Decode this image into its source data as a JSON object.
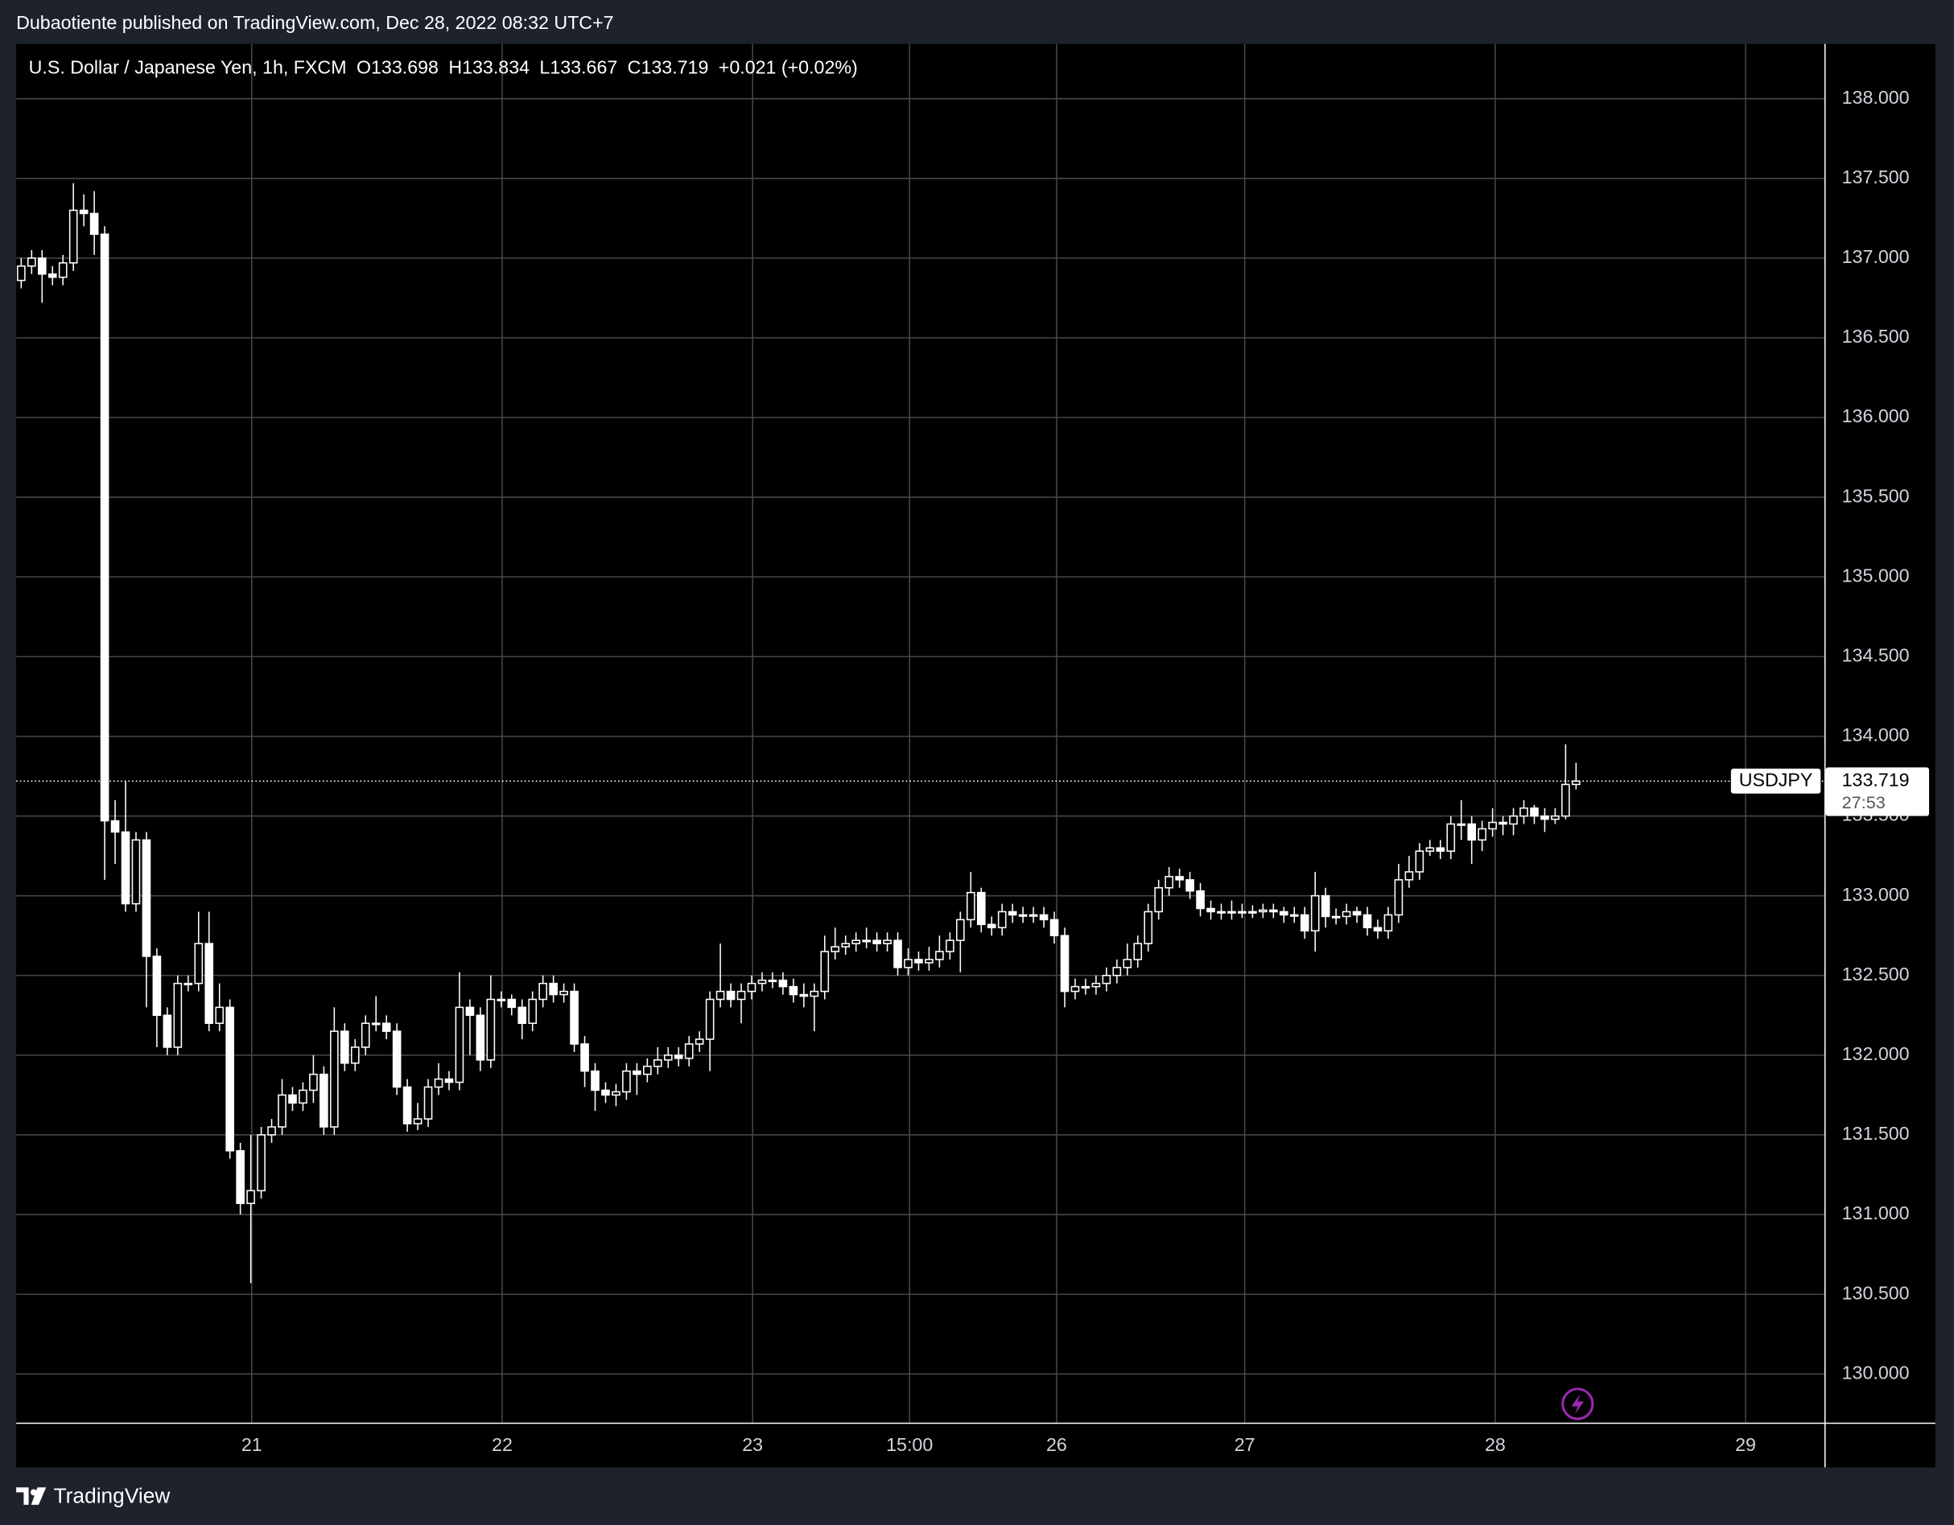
{
  "header": {
    "attribution": "Dubaotiente published on TradingView.com, Dec 28, 2022 08:32 UTC+7",
    "brand": "TradingView"
  },
  "chart_data": {
    "type": "candlestick",
    "title": "U.S. Dollar / Japanese Yen, 1h, FXCM",
    "legend": {
      "open_label": "O",
      "high_label": "H",
      "low_label": "L",
      "close_label": "C",
      "change": "+0.021 (+0.02%)"
    },
    "symbol": "USDJPY",
    "countdown": "27:53",
    "up_color": "#000000",
    "down_color": "#ffffff",
    "border_color": "#ffffff",
    "grid": true,
    "series": [
      {
        "name": "USDJPY",
        "open": [
          136.86,
          136.95,
          137.0,
          136.9,
          136.88,
          136.97,
          137.3,
          137.28,
          137.15,
          133.47,
          133.4,
          132.95,
          133.35,
          132.62,
          132.25,
          132.05,
          132.45,
          132.45,
          132.7,
          132.2,
          132.3,
          131.4,
          131.07,
          131.15,
          131.5,
          131.55,
          131.75,
          131.7,
          131.78,
          131.88,
          131.55,
          132.15,
          131.95,
          132.05,
          132.2,
          132.2,
          132.15,
          131.8,
          131.57,
          131.6,
          131.8,
          131.85,
          131.83,
          132.3,
          132.25,
          131.97,
          132.35,
          132.35,
          132.3,
          132.2,
          132.35,
          132.45,
          132.38,
          132.4,
          132.07,
          131.9,
          131.78,
          131.75,
          131.77,
          131.9,
          131.88,
          131.93,
          131.97,
          132.0,
          131.98,
          132.07,
          132.1,
          132.35,
          132.4,
          132.35,
          132.4,
          132.45,
          132.47,
          132.47,
          132.43,
          132.38,
          132.37,
          132.4,
          132.65,
          132.68,
          132.7,
          132.72,
          132.72,
          132.7,
          132.72,
          132.55,
          132.6,
          132.58,
          132.6,
          132.65,
          132.72,
          132.85,
          133.02,
          132.82,
          132.8,
          132.9,
          132.88,
          132.88,
          132.88,
          132.85,
          132.75,
          132.4,
          132.43,
          132.43,
          132.45,
          132.5,
          132.55,
          132.6,
          132.7,
          132.9,
          133.05,
          133.12,
          133.1,
          133.03,
          132.92,
          132.9,
          132.9,
          132.9,
          132.9,
          132.9,
          132.91,
          132.9,
          132.88,
          132.88,
          132.78,
          133.0,
          132.87,
          132.87,
          132.9,
          132.88,
          132.8,
          132.78,
          132.88,
          133.1,
          133.15,
          133.28,
          133.3,
          133.28,
          133.45,
          133.45,
          133.35,
          133.42,
          133.46,
          133.45,
          133.5,
          133.55,
          133.5,
          133.48,
          133.5,
          133.698
        ],
        "high": [
          137.0,
          137.05,
          137.05,
          136.95,
          137.02,
          137.47,
          137.4,
          137.42,
          137.2,
          133.6,
          133.72,
          133.4,
          133.4,
          132.67,
          132.3,
          132.5,
          132.5,
          132.9,
          132.9,
          132.45,
          132.35,
          131.45,
          131.5,
          131.55,
          131.6,
          131.85,
          131.8,
          131.83,
          132.0,
          131.93,
          132.3,
          132.2,
          132.1,
          132.25,
          132.37,
          132.25,
          132.2,
          131.85,
          131.7,
          131.85,
          131.95,
          131.9,
          132.52,
          132.35,
          132.3,
          132.5,
          132.4,
          132.38,
          132.35,
          132.4,
          132.5,
          132.5,
          132.45,
          132.45,
          132.12,
          131.95,
          131.83,
          131.82,
          131.95,
          131.95,
          131.98,
          132.05,
          132.05,
          132.05,
          132.12,
          132.15,
          132.4,
          132.7,
          132.45,
          132.45,
          132.5,
          132.52,
          132.52,
          132.52,
          132.48,
          132.45,
          132.45,
          132.75,
          132.8,
          132.75,
          132.77,
          132.8,
          132.77,
          132.77,
          132.77,
          132.67,
          132.65,
          132.68,
          132.75,
          132.77,
          132.9,
          133.15,
          133.05,
          132.87,
          132.95,
          132.95,
          132.93,
          132.93,
          132.93,
          132.9,
          132.8,
          132.48,
          132.48,
          132.5,
          132.55,
          132.6,
          132.7,
          132.75,
          132.95,
          133.1,
          133.18,
          133.17,
          133.15,
          133.08,
          132.97,
          132.95,
          132.97,
          132.95,
          132.94,
          132.95,
          132.95,
          132.93,
          132.93,
          132.93,
          133.15,
          133.05,
          132.92,
          132.95,
          132.93,
          132.93,
          132.85,
          132.93,
          133.2,
          133.25,
          133.33,
          133.35,
          133.35,
          133.5,
          133.6,
          133.5,
          133.47,
          133.55,
          133.5,
          133.55,
          133.6,
          133.57,
          133.55,
          133.55,
          133.95,
          133.834
        ],
        "low": [
          136.81,
          136.9,
          136.72,
          136.83,
          136.83,
          136.92,
          137.2,
          137.02,
          133.1,
          133.2,
          132.9,
          132.9,
          132.3,
          132.05,
          132.0,
          132.0,
          132.4,
          132.4,
          132.15,
          132.15,
          131.35,
          131.0,
          130.57,
          131.1,
          131.45,
          131.5,
          131.65,
          131.65,
          131.7,
          131.5,
          131.5,
          131.9,
          131.9,
          132.0,
          132.15,
          132.1,
          131.75,
          131.52,
          131.53,
          131.55,
          131.75,
          131.78,
          131.78,
          132.0,
          131.9,
          131.92,
          132.3,
          132.25,
          132.1,
          132.15,
          132.3,
          132.33,
          132.33,
          132.02,
          131.8,
          131.65,
          131.7,
          131.68,
          131.72,
          131.75,
          131.83,
          131.88,
          131.92,
          131.93,
          131.93,
          132.02,
          131.9,
          132.3,
          132.3,
          132.2,
          132.35,
          132.4,
          132.42,
          132.38,
          132.33,
          132.3,
          132.15,
          132.35,
          132.6,
          132.63,
          132.65,
          132.67,
          132.65,
          132.65,
          132.5,
          132.5,
          132.53,
          132.53,
          132.55,
          132.6,
          132.52,
          132.8,
          132.77,
          132.75,
          132.75,
          132.83,
          132.83,
          132.83,
          132.8,
          132.7,
          132.3,
          132.35,
          132.38,
          132.38,
          132.4,
          132.45,
          132.5,
          132.55,
          132.65,
          132.85,
          133.0,
          133.05,
          132.98,
          132.87,
          132.85,
          132.85,
          132.85,
          132.86,
          132.86,
          132.86,
          132.86,
          132.83,
          132.83,
          132.73,
          132.65,
          132.8,
          132.82,
          132.82,
          132.83,
          132.75,
          132.73,
          132.73,
          132.83,
          133.05,
          133.1,
          133.25,
          133.23,
          133.23,
          133.35,
          133.2,
          133.28,
          133.37,
          133.38,
          133.38,
          133.45,
          133.45,
          133.4,
          133.45,
          133.48,
          133.667
        ],
        "close": [
          136.95,
          137.0,
          136.9,
          136.88,
          136.97,
          137.3,
          137.28,
          137.15,
          133.47,
          133.4,
          132.95,
          133.35,
          132.62,
          132.25,
          132.05,
          132.45,
          132.45,
          132.7,
          132.2,
          132.3,
          131.4,
          131.07,
          131.15,
          131.5,
          131.55,
          131.75,
          131.7,
          131.78,
          131.88,
          131.55,
          132.15,
          131.95,
          132.05,
          132.2,
          132.2,
          132.15,
          131.8,
          131.57,
          131.6,
          131.8,
          131.85,
          131.83,
          132.3,
          132.25,
          131.97,
          132.35,
          132.35,
          132.3,
          132.2,
          132.35,
          132.45,
          132.38,
          132.4,
          132.07,
          131.9,
          131.78,
          131.75,
          131.77,
          131.9,
          131.88,
          131.93,
          131.97,
          132.0,
          131.98,
          132.07,
          132.1,
          132.35,
          132.4,
          132.35,
          132.4,
          132.45,
          132.47,
          132.47,
          132.43,
          132.38,
          132.37,
          132.4,
          132.65,
          132.68,
          132.7,
          132.72,
          132.72,
          132.7,
          132.72,
          132.55,
          132.6,
          132.58,
          132.6,
          132.65,
          132.72,
          132.85,
          133.02,
          132.82,
          132.8,
          132.9,
          132.88,
          132.88,
          132.88,
          132.85,
          132.75,
          132.4,
          132.43,
          132.43,
          132.45,
          132.5,
          132.55,
          132.6,
          132.7,
          132.9,
          133.05,
          133.12,
          133.1,
          133.03,
          132.92,
          132.9,
          132.9,
          132.9,
          132.9,
          132.9,
          132.91,
          132.9,
          132.88,
          132.88,
          132.78,
          133.0,
          132.87,
          132.87,
          132.9,
          132.88,
          132.8,
          132.78,
          132.88,
          133.1,
          133.15,
          133.28,
          133.3,
          133.28,
          133.45,
          133.45,
          133.35,
          133.42,
          133.46,
          133.45,
          133.5,
          133.55,
          133.5,
          133.48,
          133.5,
          133.698,
          133.719
        ]
      }
    ],
    "xlim": [
      -0.48,
      172.8
    ],
    "xticks": [
      {
        "value": 22.09,
        "label": "21"
      },
      {
        "value": 46.09,
        "label": "22"
      },
      {
        "value": 70.09,
        "label": "23"
      },
      {
        "value": 85.13,
        "label": "15:00"
      },
      {
        "value": 99.22,
        "label": "26"
      },
      {
        "value": 117.25,
        "label": "27"
      },
      {
        "value": 141.25,
        "label": "28"
      },
      {
        "value": 165.25,
        "label": "29"
      }
    ],
    "ylim": [
      129.695,
      138.344
    ],
    "yticks": [
      {
        "value": 130,
        "label": "130.000"
      },
      {
        "value": 130.5,
        "label": "130.500"
      },
      {
        "value": 131,
        "label": "131.000"
      },
      {
        "value": 131.5,
        "label": "131.500"
      },
      {
        "value": 132,
        "label": "132.000"
      },
      {
        "value": 132.5,
        "label": "132.500"
      },
      {
        "value": 133,
        "label": "133.000"
      },
      {
        "value": 133.5,
        "label": "133.500"
      },
      {
        "value": 134,
        "label": "134.000"
      },
      {
        "value": 134.5,
        "label": "134.500"
      },
      {
        "value": 135,
        "label": "135.000"
      },
      {
        "value": 135.5,
        "label": "135.500"
      },
      {
        "value": 136,
        "label": "136.000"
      },
      {
        "value": 136.5,
        "label": "136.500"
      },
      {
        "value": 137,
        "label": "137.000"
      },
      {
        "value": 137.5,
        "label": "137.500"
      },
      {
        "value": 138,
        "label": "138.000"
      }
    ]
  }
}
